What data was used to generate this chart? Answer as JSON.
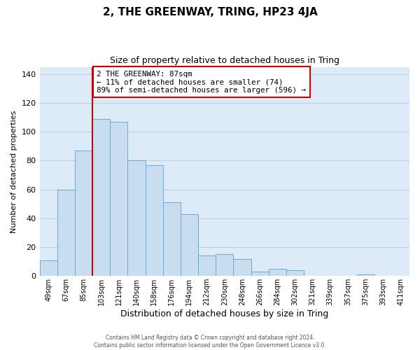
{
  "title": "2, THE GREENWAY, TRING, HP23 4JA",
  "subtitle": "Size of property relative to detached houses in Tring",
  "xlabel": "Distribution of detached houses by size in Tring",
  "ylabel": "Number of detached properties",
  "footer_line1": "Contains HM Land Registry data © Crown copyright and database right 2024.",
  "footer_line2": "Contains public sector information licensed under the Open Government Licence v3.0.",
  "bar_labels": [
    "49sqm",
    "67sqm",
    "85sqm",
    "103sqm",
    "121sqm",
    "140sqm",
    "158sqm",
    "176sqm",
    "194sqm",
    "212sqm",
    "230sqm",
    "248sqm",
    "266sqm",
    "284sqm",
    "302sqm",
    "321sqm",
    "339sqm",
    "357sqm",
    "375sqm",
    "393sqm",
    "411sqm"
  ],
  "bar_values": [
    11,
    60,
    87,
    109,
    107,
    80,
    77,
    51,
    43,
    14,
    15,
    12,
    3,
    5,
    4,
    0,
    0,
    0,
    1,
    0,
    0
  ],
  "bar_color": "#c9ddf0",
  "bar_edge_color": "#6aaad4",
  "redline_index": 2,
  "property_sqm": 87,
  "annotation_line1": "2 THE GREENWAY: 87sqm",
  "annotation_line2": "← 11% of detached houses are smaller (74)",
  "annotation_line3": "89% of semi-detached houses are larger (596) →",
  "annotation_box_color": "white",
  "annotation_box_edge_color": "#cc0000",
  "ylim": [
    0,
    145
  ],
  "yticks": [
    0,
    20,
    40,
    60,
    80,
    100,
    120,
    140
  ],
  "grid_color": "#b8cfe0",
  "background_color": "#ddeaf8"
}
